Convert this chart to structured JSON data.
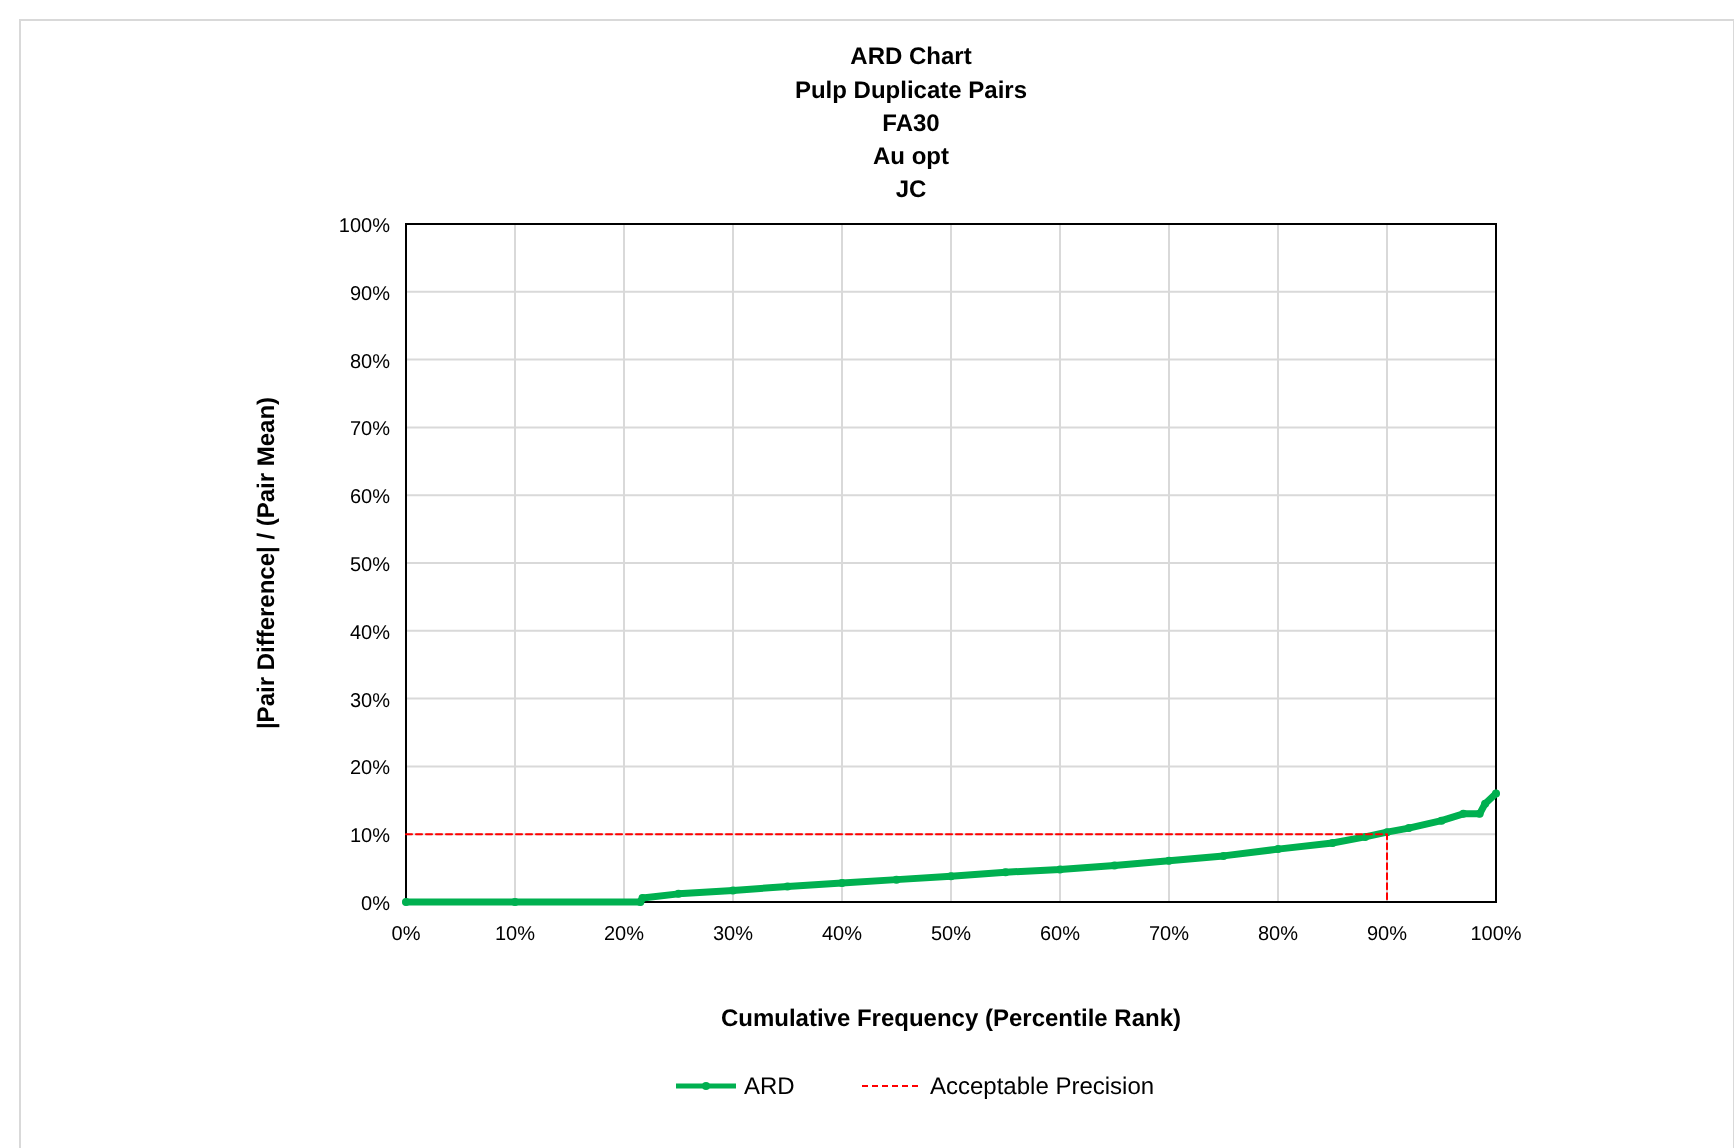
{
  "chart_data": {
    "type": "line",
    "title": "ARD Chart",
    "subtitle": "Pulp Duplicate Pairs\nFA30\nAu opt\nJC",
    "xlabel": "Cumulative Frequency (Percentile Rank)",
    "ylabel": "|Pair Difference| / (Pair Mean)",
    "xlim": [
      0,
      100
    ],
    "ylim": [
      0,
      100
    ],
    "xticks": [
      {
        "value": 0,
        "label": "0%"
      },
      {
        "value": 10,
        "label": "10%"
      },
      {
        "value": 20,
        "label": "20%"
      },
      {
        "value": 30,
        "label": "30%"
      },
      {
        "value": 40,
        "label": "40%"
      },
      {
        "value": 50,
        "label": "50%"
      },
      {
        "value": 60,
        "label": "60%"
      },
      {
        "value": 70,
        "label": "70%"
      },
      {
        "value": 80,
        "label": "80%"
      },
      {
        "value": 90,
        "label": "90%"
      },
      {
        "value": 100,
        "label": "100%"
      }
    ],
    "yticks": [
      {
        "value": 0,
        "label": "0%"
      },
      {
        "value": 10,
        "label": "10%"
      },
      {
        "value": 20,
        "label": "20%"
      },
      {
        "value": 30,
        "label": "30%"
      },
      {
        "value": 40,
        "label": "40%"
      },
      {
        "value": 50,
        "label": "50%"
      },
      {
        "value": 60,
        "label": "60%"
      },
      {
        "value": 70,
        "label": "70%"
      },
      {
        "value": 80,
        "label": "80%"
      },
      {
        "value": 90,
        "label": "90%"
      },
      {
        "value": 100,
        "label": "100%"
      }
    ],
    "grid": true,
    "legend": "bottom",
    "series": [
      {
        "name": "ARD",
        "color": "#00b050",
        "marker": "circle",
        "line_style": "solid",
        "x": [
          0,
          10,
          21.5,
          21.7,
          25,
          30,
          35,
          40,
          45,
          50,
          55,
          60,
          65,
          70,
          75,
          80,
          85,
          88,
          90,
          92,
          95,
          97,
          98.5,
          99,
          100
        ],
        "values": [
          0,
          0,
          0,
          0.6,
          1.2,
          1.7,
          2.3,
          2.8,
          3.3,
          3.8,
          4.4,
          4.8,
          5.4,
          6.1,
          6.8,
          7.8,
          8.7,
          9.6,
          10.3,
          10.9,
          12,
          13,
          13,
          14.5,
          16
        ]
      },
      {
        "name": "Acceptable Precision",
        "color": "#ff0000",
        "marker": "none",
        "line_style": "dashed",
        "x": [
          0,
          90,
          90
        ],
        "values": [
          10,
          10,
          0
        ]
      }
    ]
  }
}
